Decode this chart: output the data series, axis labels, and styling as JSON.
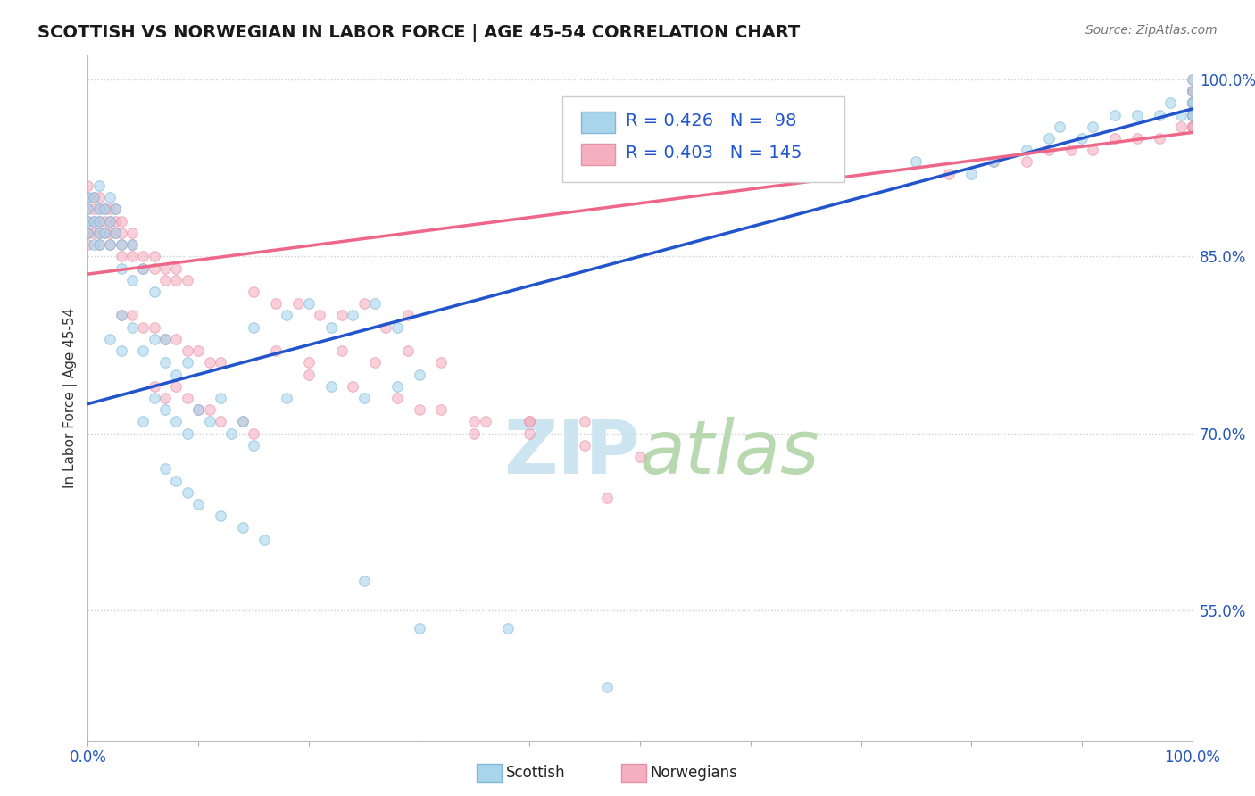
{
  "title": "SCOTTISH VS NORWEGIAN IN LABOR FORCE | AGE 45-54 CORRELATION CHART",
  "source_text": "Source: ZipAtlas.com",
  "ylabel": "In Labor Force | Age 45-54",
  "xlim": [
    0.0,
    1.0
  ],
  "ylim": [
    0.44,
    1.02
  ],
  "y_ticks_right": [
    0.55,
    0.7,
    0.85,
    1.0
  ],
  "y_tick_labels_right": [
    "55.0%",
    "70.0%",
    "85.0%",
    "100.0%"
  ],
  "title_color": "#1a1a1a",
  "title_fontsize": 14,
  "source_fontsize": 10,
  "source_color": "#777777",
  "background_color": "#ffffff",
  "grid_color": "#cccccc",
  "watermark_color": "#cce5f0",
  "legend_R_scottish": "0.426",
  "legend_N_scottish": "98",
  "legend_R_norwegian": "0.403",
  "legend_N_norwegian": "145",
  "scottish_color": "#a8d4ec",
  "norwegian_color": "#f5b0c0",
  "scottish_line_color": "#2255cc",
  "norwegian_line_color": "#ee6688",
  "scatter_alpha": 0.6,
  "marker_size": 70,
  "scot_line_x0": 0.0,
  "scot_line_y0": 0.725,
  "scot_line_x1": 1.0,
  "scot_line_y1": 0.975,
  "norw_line_x0": 0.0,
  "norw_line_y0": 0.835,
  "norw_line_x1": 1.0,
  "norw_line_y1": 0.955
}
